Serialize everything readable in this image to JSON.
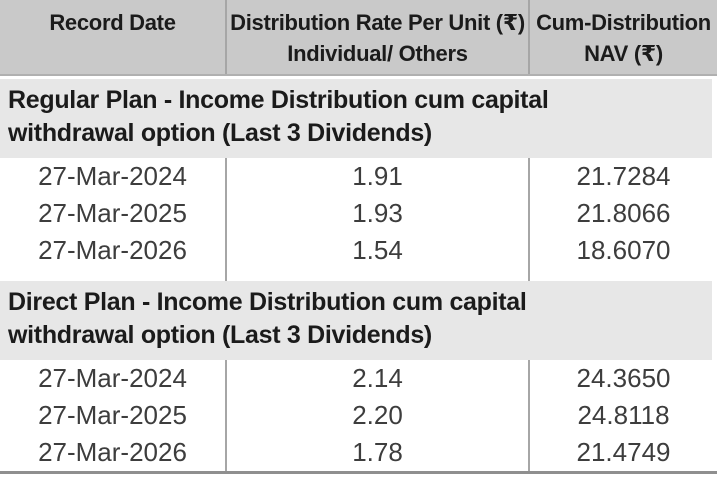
{
  "colors": {
    "header_bg": "#c9c9c9",
    "section_bg": "#e7e7e7",
    "divider": "#a6a6a6",
    "header_underline": "#b0b0b0",
    "bottom_border": "#8f8f8f",
    "heading_text": "#1b1b1b",
    "data_text": "#3d3d3d"
  },
  "header": {
    "col1": "Record Date",
    "col2_line1": "Distribution Rate Per Unit (₹)",
    "col2_line2": "Individual/ Others",
    "col3_line1": "Cum-Distribution",
    "col3_line2": "NAV (₹)"
  },
  "sections": [
    {
      "title_line1": "Regular Plan - Income Distribution cum capital",
      "title_line2": "withdrawal option (Last 3 Dividends)",
      "rows": [
        {
          "record_date": "27-Mar-2024",
          "rate": "1.91",
          "nav": "21.7284"
        },
        {
          "record_date": "27-Mar-2025",
          "rate": "1.93",
          "nav": "21.8066"
        },
        {
          "record_date": "27-Mar-2026",
          "rate": "1.54",
          "nav": "18.6070"
        }
      ]
    },
    {
      "title_line1": "Direct Plan - Income Distribution cum capital",
      "title_line2": "withdrawal option (Last 3 Dividends)",
      "rows": [
        {
          "record_date": "27-Mar-2024",
          "rate": "2.14",
          "nav": "24.3650"
        },
        {
          "record_date": "27-Mar-2025",
          "rate": "2.20",
          "nav": "24.8118"
        },
        {
          "record_date": "27-Mar-2026",
          "rate": "1.78",
          "nav": "21.4749"
        }
      ]
    }
  ]
}
